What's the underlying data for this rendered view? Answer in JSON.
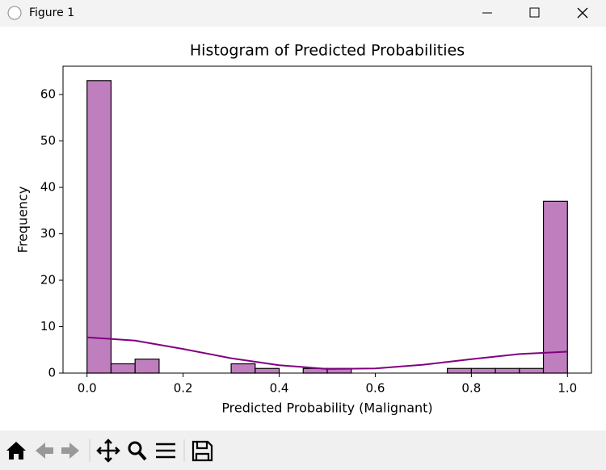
{
  "window": {
    "title": "Figure 1"
  },
  "chart_data": {
    "type": "histogram",
    "title": "Histogram of Predicted Probabilities",
    "x_label": "Predicted Probability (Malignant)",
    "y_label": "Frequency",
    "bins": [
      0,
      0.05,
      0.1,
      0.15,
      0.2,
      0.25,
      0.3,
      0.35,
      0.4,
      0.45,
      0.5,
      0.55,
      0.6,
      0.65,
      0.7,
      0.75,
      0.8,
      0.85,
      0.9,
      0.95,
      1
    ],
    "values": [
      63,
      2,
      3,
      0,
      0,
      0,
      2,
      1,
      0,
      1,
      1,
      0,
      0,
      0,
      0,
      1,
      1,
      1,
      1,
      37
    ],
    "color": "#bf7fbf",
    "kde": {
      "x": [
        0,
        0.1,
        0.2,
        0.3,
        0.4,
        0.5,
        0.6,
        0.7,
        0.8,
        0.9,
        1
      ],
      "values": [
        7.7,
        7.0,
        5.2,
        3.2,
        1.7,
        0.9,
        1.0,
        1.8,
        3.0,
        4.1,
        4.6
      ],
      "color": "#800080"
    },
    "xlim": [
      -0.05,
      1.05
    ],
    "ylim": [
      0,
      66.1
    ],
    "xticks": [
      {
        "value": 0,
        "label": "0.0"
      },
      0.2,
      0.4,
      0.6,
      0.8,
      {
        "value": 1,
        "label": "1.0"
      }
    ],
    "yticks": [
      0,
      10,
      20,
      30,
      40,
      50,
      60
    ]
  }
}
